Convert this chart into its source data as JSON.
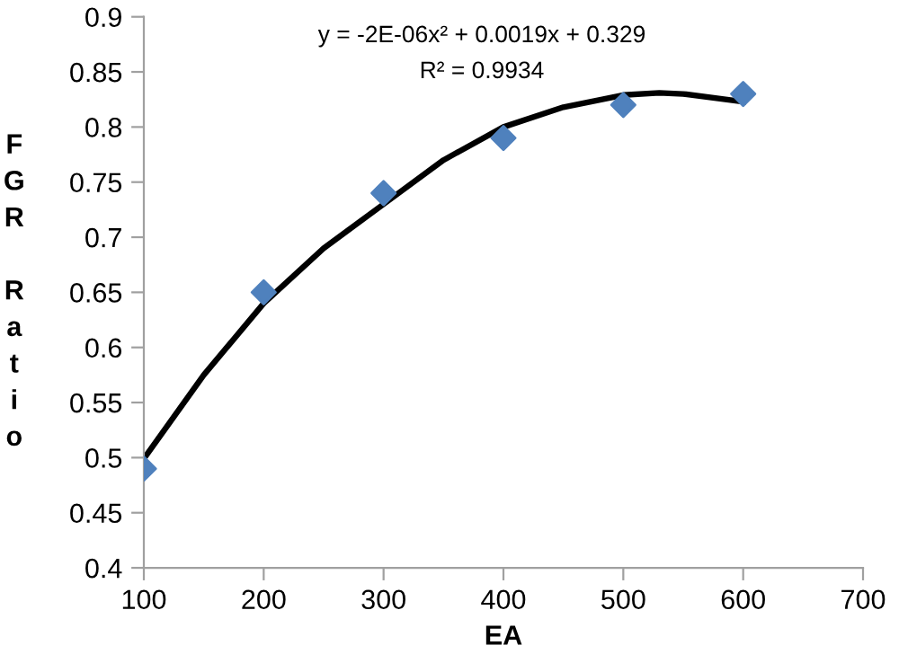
{
  "chart_data": {
    "type": "scatter",
    "xlabel": "EA",
    "ylabel": "FGR Ratio",
    "annotations": [
      "y = -2E-06x² + 0.0019x + 0.329",
      "R² = 0.9934"
    ],
    "xlim": [
      100,
      700
    ],
    "xticks": [
      100,
      200,
      300,
      400,
      500,
      600,
      700
    ],
    "ylim": [
      0.4,
      0.9
    ],
    "yticks": [
      0.4,
      0.45,
      0.5,
      0.55,
      0.6,
      0.65,
      0.7,
      0.75,
      0.8,
      0.85,
      0.9
    ],
    "grid": false,
    "legend": false,
    "marker": "diamond",
    "x": [
      100,
      200,
      300,
      400,
      500,
      600
    ],
    "series": [
      {
        "color": "#4f81bd",
        "values": [
          0.49,
          0.65,
          0.74,
          0.79,
          0.82,
          0.83
        ]
      },
      {
        "type": "line",
        "color": "#000000",
        "marker": "none",
        "line_style": "solid",
        "x": [
          100,
          150,
          200,
          250,
          300,
          350,
          400,
          450,
          500,
          530,
          550,
          600
        ],
        "values": [
          0.499,
          0.575,
          0.64,
          0.69,
          0.73,
          0.77,
          0.8,
          0.818,
          0.829,
          0.831,
          0.83,
          0.823
        ]
      }
    ]
  }
}
